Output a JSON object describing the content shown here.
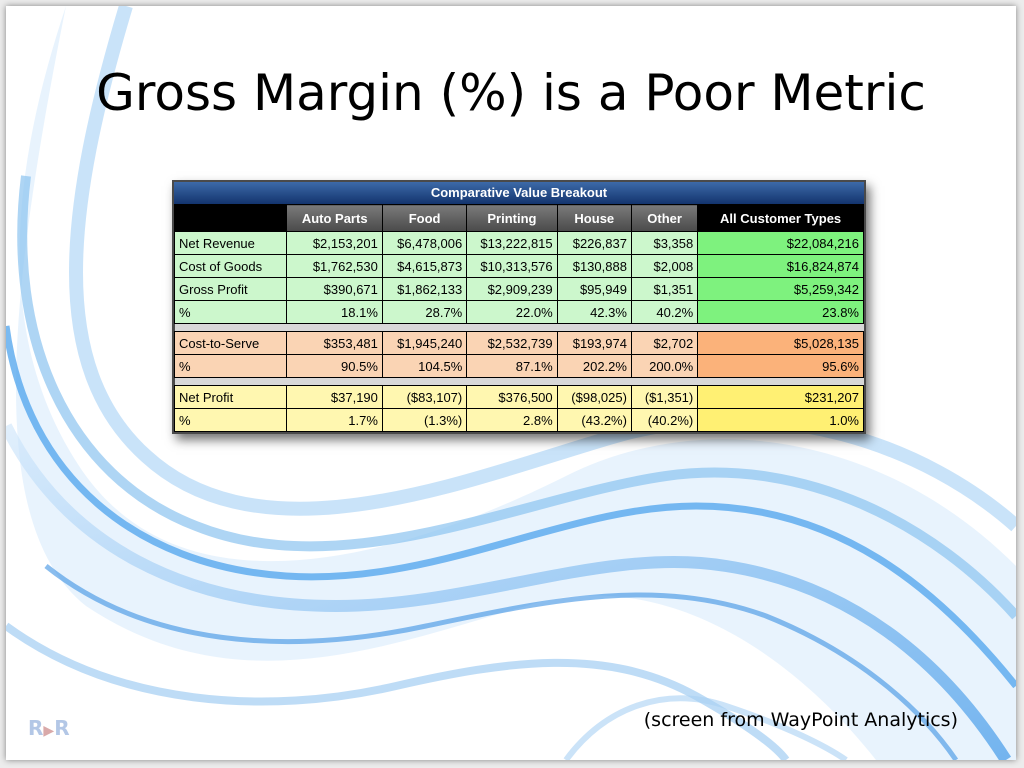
{
  "slide": {
    "title": "Gross Margin (%) is a Poor Metric",
    "caption": "(screen from WayPoint Analytics)",
    "logo": {
      "left": "R",
      "right": "R"
    }
  },
  "table": {
    "banner": "Comparative Value Breakout",
    "headers": [
      "",
      "Auto Parts",
      "Food",
      "Printing",
      "House",
      "Other",
      "All Customer Types"
    ],
    "rows": [
      {
        "group": "green",
        "cells": [
          "Net Revenue",
          "$2,153,201",
          "$6,478,006",
          "$13,222,815",
          "$226,837",
          "$3,358",
          "$22,084,216"
        ]
      },
      {
        "group": "green",
        "cells": [
          "Cost of Goods",
          "$1,762,530",
          "$4,615,873",
          "$10,313,576",
          "$130,888",
          "$2,008",
          "$16,824,874"
        ]
      },
      {
        "group": "green",
        "cells": [
          "Gross Profit",
          "$390,671",
          "$1,862,133",
          "$2,909,239",
          "$95,949",
          "$1,351",
          "$5,259,342"
        ]
      },
      {
        "group": "green",
        "cells": [
          "%",
          "18.1%",
          "28.7%",
          "22.0%",
          "42.3%",
          "40.2%",
          "23.8%"
        ]
      },
      {
        "group": "orange",
        "cells": [
          "Cost-to-Serve",
          "$353,481",
          "$1,945,240",
          "$2,532,739",
          "$193,974",
          "$2,702",
          "$5,028,135"
        ]
      },
      {
        "group": "orange",
        "cells": [
          "%",
          "90.5%",
          "104.5%",
          "87.1%",
          "202.2%",
          "200.0%",
          "95.6%"
        ]
      },
      {
        "group": "yellow",
        "cells": [
          "Net Profit",
          "$37,190",
          "($83,107)",
          "$376,500",
          "($98,025)",
          "($1,351)",
          "$231,207"
        ]
      },
      {
        "group": "yellow",
        "cells": [
          "%",
          "1.7%",
          "(1.3%)",
          "2.8%",
          "(43.2%)",
          "(40.2%)",
          "1.0%"
        ]
      }
    ]
  },
  "colors": {
    "green": "#ccf7cc",
    "green_total": "#7ef27e",
    "orange": "#fad4b4",
    "orange_total": "#fbb27a",
    "yellow": "#fff7b0",
    "yellow_total": "#fff073",
    "banner": "#1f4784"
  }
}
